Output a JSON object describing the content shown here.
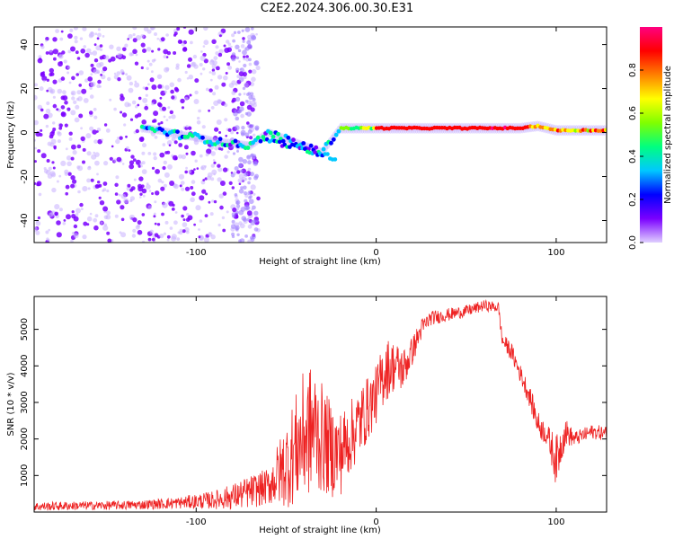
{
  "title": "C2E2.2024.306.00.30.E31",
  "chart_data": [
    {
      "type": "heatmap",
      "title": "C2E2.2024.306.00.30.E31",
      "xlabel": "Height of straight line (km)",
      "ylabel": "Frequency (Hz)",
      "xlim": [
        -190,
        128
      ],
      "ylim": [
        -50,
        48
      ],
      "x_ticks": [
        -100,
        0,
        100
      ],
      "y_ticks": [
        -40,
        -20,
        0,
        20,
        40
      ],
      "x_tick_labels": [
        "-100",
        "0",
        "100"
      ],
      "y_tick_labels": [
        "-40",
        "-20",
        "0",
        "20",
        "40"
      ],
      "colorbar": {
        "label": "Normalized spectral amplitude",
        "range": [
          0,
          1
        ],
        "ticks": [
          0,
          0.2,
          0.4,
          0.6,
          0.8
        ],
        "tick_labels": [
          "0.0",
          "0.2",
          "0.4",
          "0.6",
          "0.8"
        ],
        "colors": [
          "#e0d0ff",
          "#7a00ff",
          "#0000ff",
          "#00c8ff",
          "#00ff80",
          "#80ff00",
          "#ffff00",
          "#ff8000",
          "#ff0000",
          "#ff0080"
        ]
      },
      "trace": {
        "x": [
          -130,
          -120,
          -110,
          -100,
          -90,
          -80,
          -70,
          -60,
          -50,
          -40,
          -30,
          -20,
          -10,
          0,
          20,
          40,
          60,
          80,
          90,
          100,
          110,
          128
        ],
        "freq": [
          2,
          1,
          -1,
          -2,
          -4,
          -5,
          -6,
          0,
          -3,
          -6,
          -9,
          2,
          2,
          2,
          2,
          2,
          2,
          2,
          3,
          1,
          1,
          1
        ]
      },
      "noise_region_x": [
        -190,
        -65
      ]
    },
    {
      "type": "line",
      "xlabel": "Height of straight line (km)",
      "ylabel": "SNR (10 * v/v)",
      "xlim": [
        -190,
        128
      ],
      "ylim": [
        0,
        5900
      ],
      "x_ticks": [
        -100,
        0,
        100
      ],
      "y_ticks": [
        1000,
        2000,
        3000,
        4000,
        5000
      ],
      "x_tick_labels": [
        "-100",
        "0",
        "100"
      ],
      "y_tick_labels": [
        "1000",
        "2000",
        "3000",
        "4000",
        "5000"
      ],
      "series": [
        {
          "color": "#ee2222",
          "x": [
            -190,
            -170,
            -150,
            -130,
            -110,
            -90,
            -80,
            -70,
            -60,
            -50,
            -45,
            -40,
            -35,
            -30,
            -25,
            -20,
            -15,
            -10,
            -5,
            0,
            5,
            10,
            15,
            20,
            25,
            30,
            40,
            50,
            60,
            68,
            70,
            75,
            80,
            85,
            90,
            95,
            100,
            105,
            110,
            115,
            120,
            128
          ],
          "y": [
            150,
            170,
            180,
            200,
            250,
            330,
            420,
            550,
            700,
            1300,
            1700,
            2100,
            2300,
            2000,
            1700,
            1600,
            2000,
            2400,
            2800,
            3200,
            3900,
            4000,
            3900,
            4400,
            5000,
            5300,
            5400,
            5500,
            5650,
            5600,
            4700,
            4400,
            3800,
            3200,
            2400,
            2100,
            1400,
            2200,
            2000,
            2100,
            2200,
            2150
          ],
          "noise": [
            120,
            120,
            120,
            130,
            160,
            250,
            350,
            450,
            500,
            1200,
            1500,
            1800,
            1800,
            1500,
            1300,
            1200,
            1000,
            1000,
            900,
            800,
            900,
            700,
            600,
            400,
            300,
            200,
            180,
            160,
            150,
            150,
            200,
            250,
            250,
            300,
            350,
            300,
            700,
            400,
            200,
            200,
            200,
            200
          ]
        }
      ]
    }
  ]
}
